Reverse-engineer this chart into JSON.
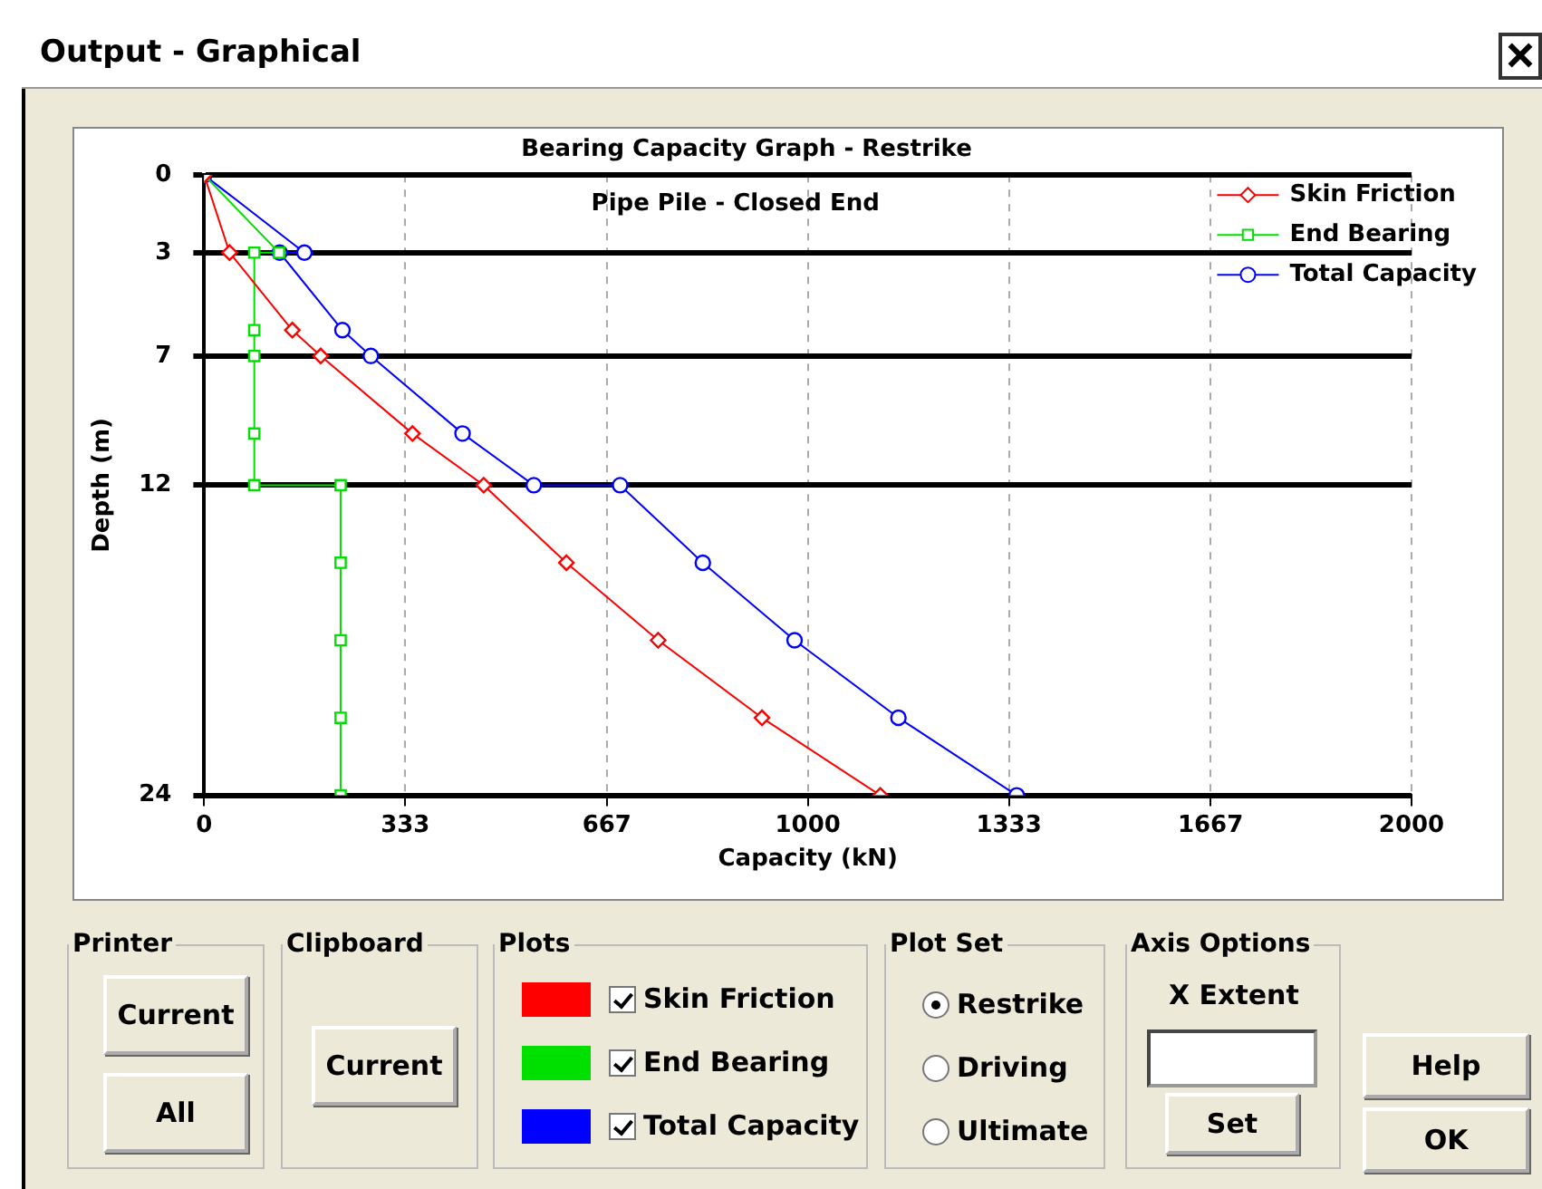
{
  "chart_data": {
    "type": "line",
    "title": "Bearing Capacity Graph - Restrike",
    "subtitle": "Pipe Pile - Closed End",
    "xlabel": "Capacity (kN)",
    "ylabel": "Depth (m)",
    "series": [
      {
        "name": "Skin Friction",
        "color": "#ff0000",
        "marker": "diamond",
        "x": [
          0,
          42,
          146,
          193,
          345,
          463,
          600,
          752,
          924,
          1120
        ],
        "values": [
          0,
          3,
          6,
          7,
          10,
          12,
          15,
          18,
          21,
          24
        ]
      },
      {
        "name": "End Bearing",
        "color": "#00e000",
        "marker": "square",
        "x": [
          0,
          124,
          83,
          83,
          83,
          83,
          83,
          226,
          226,
          226,
          226,
          226
        ],
        "values": [
          0,
          3,
          3,
          6,
          7,
          10,
          12,
          12,
          15,
          18,
          21,
          24
        ]
      },
      {
        "name": "Total Capacity",
        "color": "#0000ff",
        "marker": "circle",
        "x": [
          0,
          166,
          125,
          229,
          276,
          428,
          546,
          689,
          826,
          978,
          1150,
          1346
        ],
        "values": [
          0,
          3,
          3,
          6,
          7,
          10,
          12,
          12,
          15,
          18,
          21,
          24
        ]
      }
    ],
    "xlim": [
      0,
      2000
    ],
    "xticks": [
      0,
      333,
      667,
      1000,
      1333,
      1667,
      2000
    ],
    "ylim": [
      24,
      0
    ],
    "yticks": [
      0,
      3,
      7,
      12,
      24
    ],
    "grid": true,
    "legend": "top right",
    "line_style": "solid",
    "annotations": [
      "Output - Graphical",
      "Printer",
      "Current",
      "All",
      "Clipboard",
      "Current",
      "Plots",
      "Plot Set",
      "Restrike",
      "Driving",
      "Ultimate",
      "Axis Options",
      "X Extent",
      "Set",
      "Help",
      "OK"
    ]
  }
}
